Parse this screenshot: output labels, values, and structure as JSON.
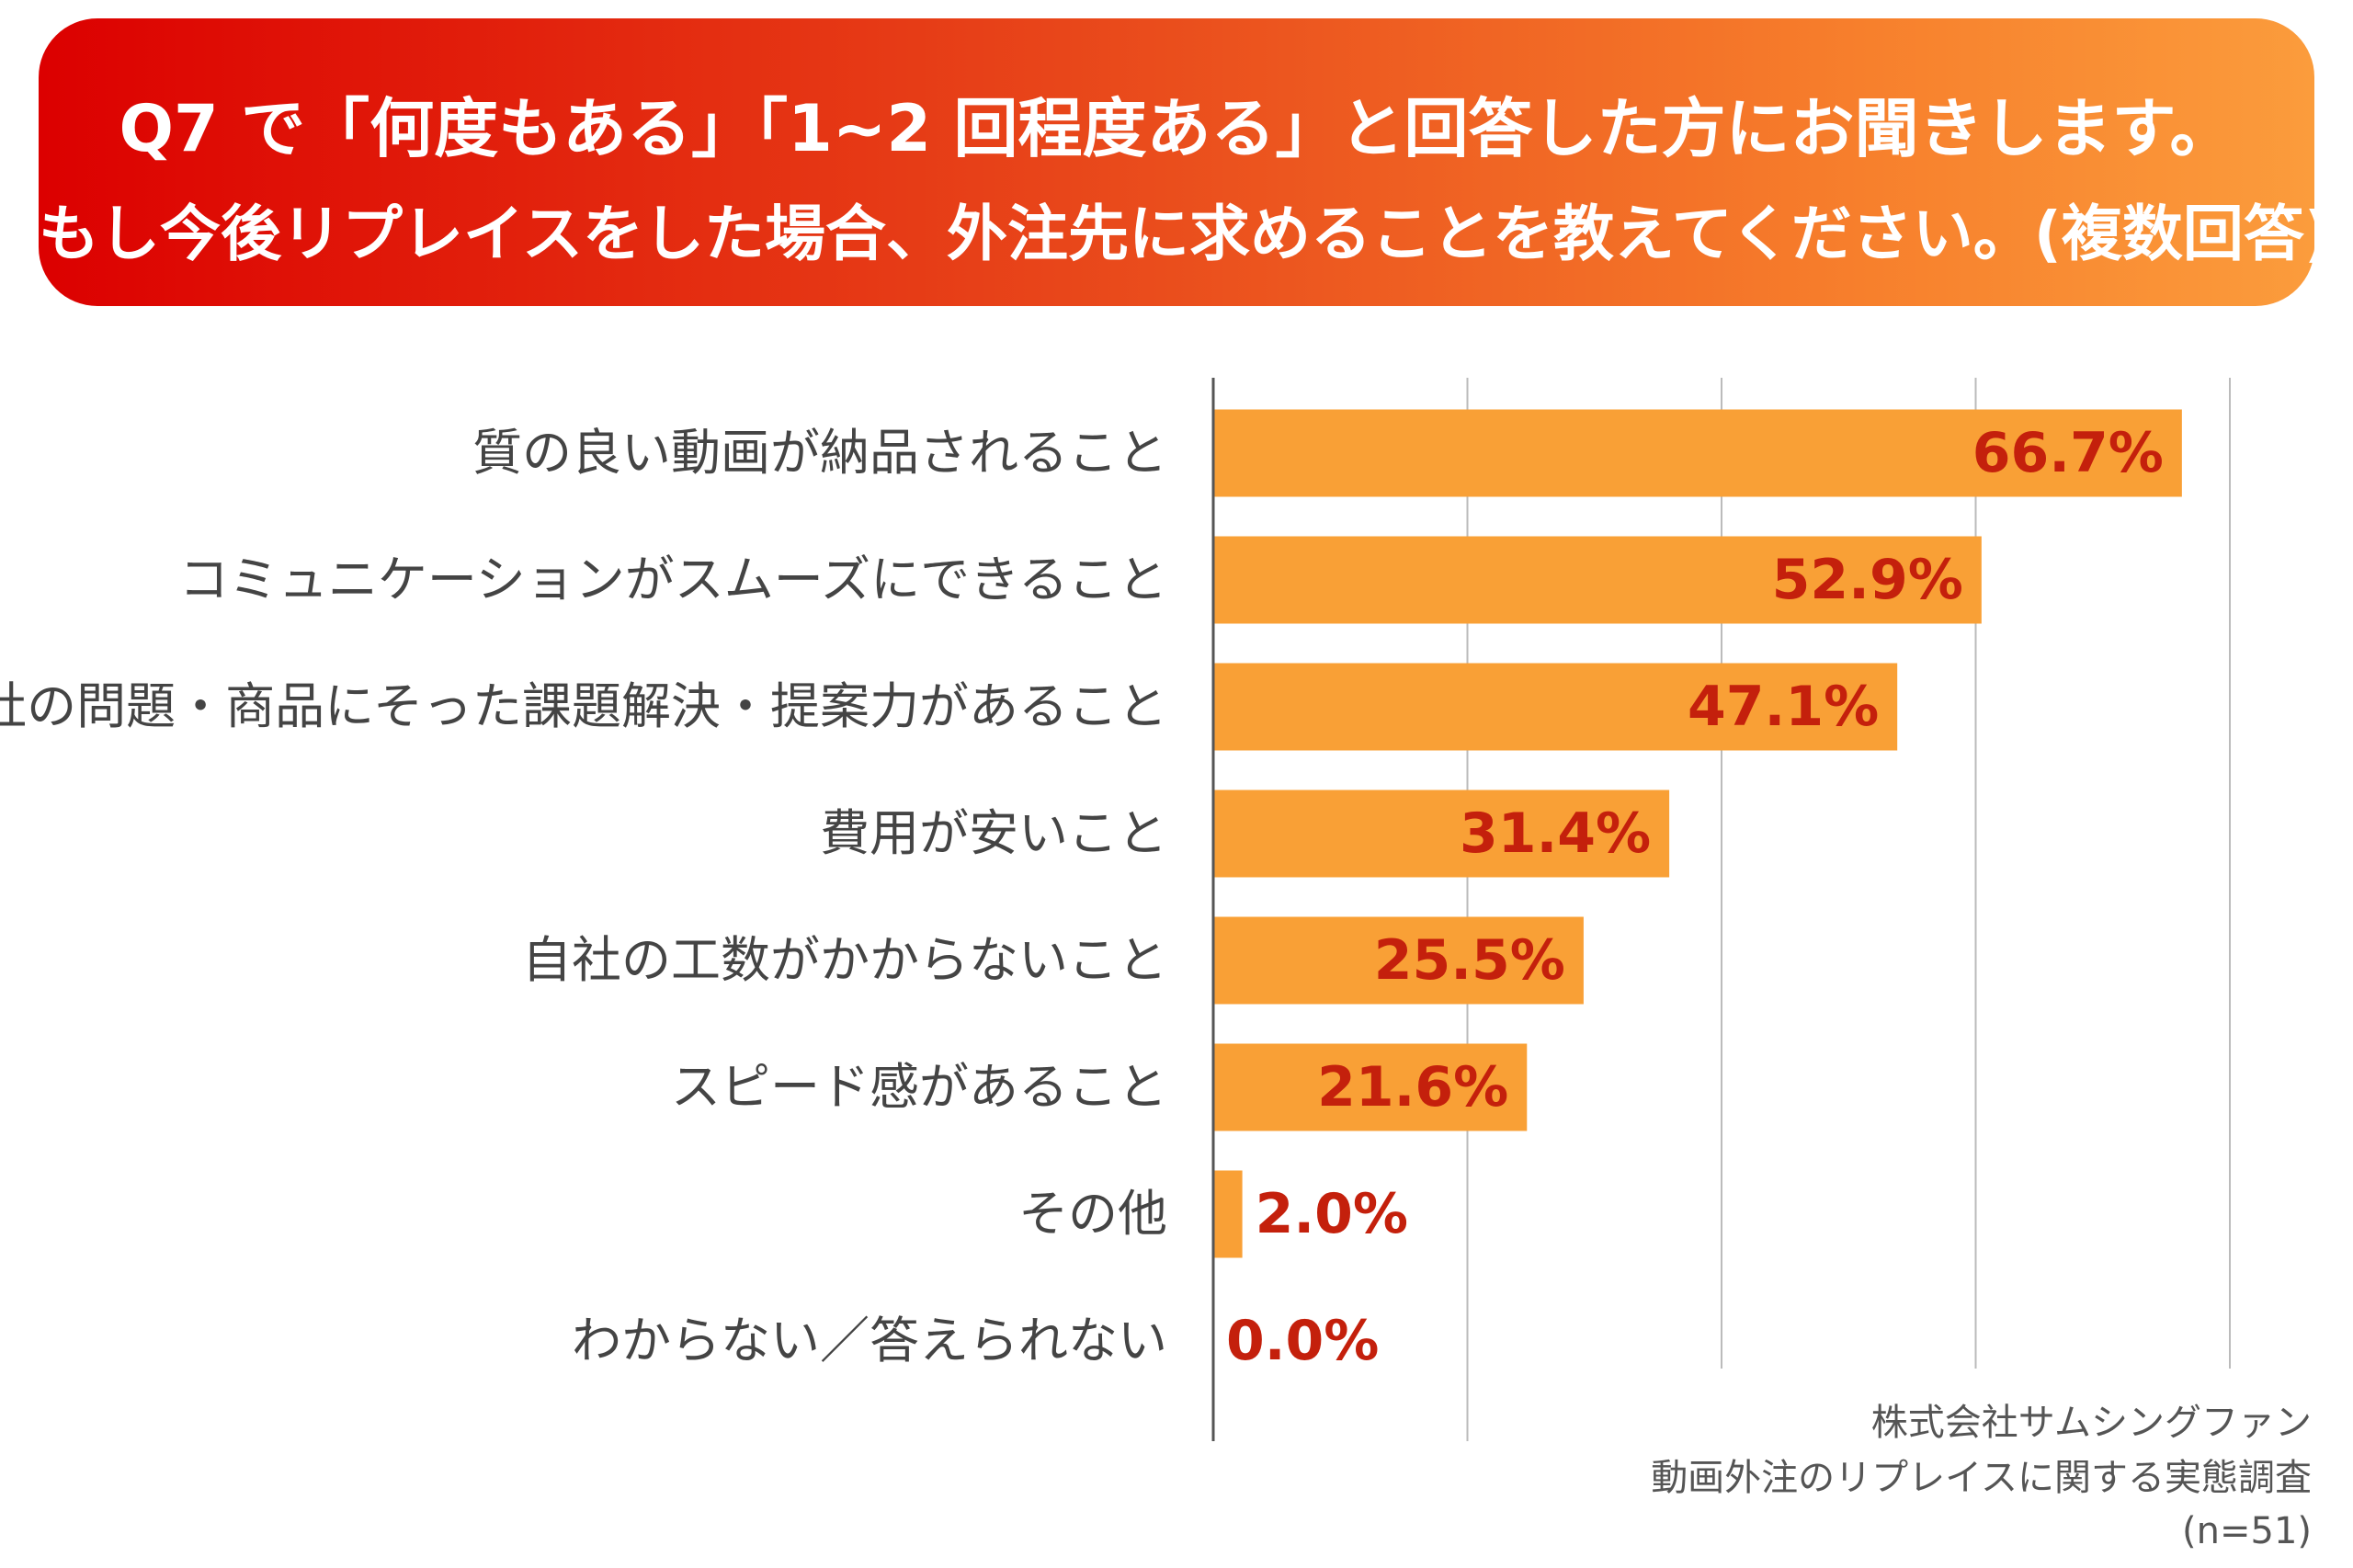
{
  "header": {
    "line1": "Q7 で「何度もある」「1~2 回程度ある」と回答した方にお聞きします。",
    "line2": "もし今後リプレイスをした場合、外注先に求めることを教えてください。(複数回答)",
    "gradient_start": "#dc0000",
    "gradient_end": "#fb9c3c"
  },
  "chart_data": {
    "type": "bar",
    "orientation": "horizontal",
    "categories": [
      "質の良い動画が納品されること",
      "コミュニケーションがスムーズにできること",
      "自社の問題・商品にそった課題解決・提案力があること",
      "費用が安いこと",
      "自社の工数がかからないこと",
      "スピード感があること",
      "その他",
      "わからない／答えられない"
    ],
    "values": [
      66.7,
      52.9,
      47.1,
      31.4,
      25.5,
      21.6,
      2.0,
      0.0
    ],
    "value_labels": [
      "66.7%",
      "52.9%",
      "47.1%",
      "31.4%",
      "25.5%",
      "21.6%",
      "2.0%",
      "0.0%"
    ],
    "xlim": [
      0,
      70
    ],
    "gridlines": [
      17.5,
      35,
      52.5,
      70
    ],
    "grid": true,
    "bar_color": "#f9a036",
    "label_color": "#c4200c",
    "unit": "%"
  },
  "footer": {
    "source_company": "株式会社サムシングファン",
    "survey_name": "動画外注のリプレイスに関する実態調査",
    "sample": "(n=51)"
  }
}
